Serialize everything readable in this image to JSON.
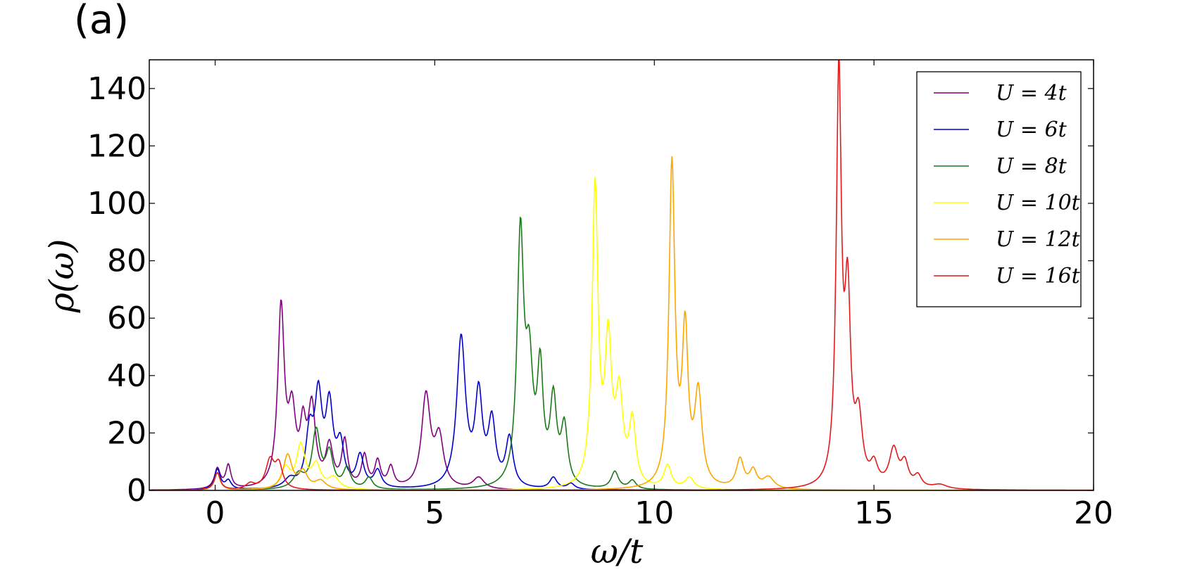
{
  "panel_label": "(a)",
  "chart_data": {
    "type": "line",
    "title": "",
    "xlabel": "ω/t",
    "ylabel": "ρ(ω)",
    "xlim": [
      -1.5,
      20
    ],
    "ylim": [
      0,
      150
    ],
    "xticks": [
      0,
      5,
      10,
      15,
      20
    ],
    "yticks": [
      0,
      20,
      40,
      60,
      80,
      100,
      120,
      140
    ],
    "legend_position": "top-right",
    "grid": false,
    "series": [
      {
        "name": "U = 4t",
        "color": "#800080",
        "peaks": [
          [
            0.05,
            7,
            0.08
          ],
          [
            0.3,
            8,
            0.07
          ],
          [
            1.5,
            62,
            0.09
          ],
          [
            1.75,
            24,
            0.1
          ],
          [
            2.0,
            18,
            0.08
          ],
          [
            2.2,
            27,
            0.1
          ],
          [
            2.6,
            14,
            0.1
          ],
          [
            2.95,
            16,
            0.08
          ],
          [
            3.4,
            11,
            0.08
          ],
          [
            3.7,
            9,
            0.08
          ],
          [
            4.0,
            7,
            0.08
          ],
          [
            4.8,
            32,
            0.12
          ],
          [
            5.1,
            17,
            0.12
          ],
          [
            6.0,
            4,
            0.15
          ]
        ]
      },
      {
        "name": "U = 6t",
        "color": "#0000cd",
        "peaks": [
          [
            0.05,
            7,
            0.08
          ],
          [
            0.3,
            3,
            0.08
          ],
          [
            1.7,
            3,
            0.15
          ],
          [
            2.15,
            18,
            0.1
          ],
          [
            2.35,
            30,
            0.1
          ],
          [
            2.6,
            27,
            0.1
          ],
          [
            2.85,
            14,
            0.1
          ],
          [
            3.3,
            11,
            0.1
          ],
          [
            3.7,
            6,
            0.1
          ],
          [
            5.6,
            52,
            0.12
          ],
          [
            6.0,
            31,
            0.1
          ],
          [
            6.3,
            22,
            0.1
          ],
          [
            6.7,
            17,
            0.1
          ],
          [
            7.7,
            4,
            0.1
          ],
          [
            8.1,
            2,
            0.1
          ]
        ]
      },
      {
        "name": "U = 8t",
        "color": "#1a7a1a",
        "peaks": [
          [
            0.05,
            6,
            0.08
          ],
          [
            1.9,
            5,
            0.15
          ],
          [
            2.3,
            20,
            0.11
          ],
          [
            2.6,
            12,
            0.1
          ],
          [
            3.0,
            7,
            0.1
          ],
          [
            3.5,
            4,
            0.1
          ],
          [
            6.95,
            86,
            0.09
          ],
          [
            7.15,
            38,
            0.1
          ],
          [
            7.4,
            38,
            0.08
          ],
          [
            7.7,
            29,
            0.09
          ],
          [
            7.95,
            20,
            0.09
          ],
          [
            9.1,
            6,
            0.1
          ],
          [
            9.5,
            3,
            0.1
          ]
        ]
      },
      {
        "name": "U = 10t",
        "color": "#ffff00",
        "peaks": [
          [
            0.05,
            6,
            0.08
          ],
          [
            1.6,
            7,
            0.12
          ],
          [
            1.95,
            15,
            0.12
          ],
          [
            2.3,
            8,
            0.12
          ],
          [
            2.7,
            4,
            0.15
          ],
          [
            8.65,
            104,
            0.08
          ],
          [
            8.95,
            48,
            0.09
          ],
          [
            9.2,
            30,
            0.1
          ],
          [
            9.5,
            22,
            0.09
          ],
          [
            10.3,
            8,
            0.1
          ],
          [
            10.8,
            4,
            0.12
          ]
        ]
      },
      {
        "name": "U = 12t",
        "color": "#ffa500",
        "peaks": [
          [
            0.05,
            6,
            0.08
          ],
          [
            1.65,
            12,
            0.12
          ],
          [
            2.0,
            6,
            0.12
          ],
          [
            2.4,
            3,
            0.15
          ],
          [
            10.4,
            112,
            0.08
          ],
          [
            10.7,
            52,
            0.08
          ],
          [
            11.0,
            32,
            0.1
          ],
          [
            11.95,
            10,
            0.1
          ],
          [
            12.25,
            6,
            0.1
          ],
          [
            12.6,
            4,
            0.15
          ]
        ]
      },
      {
        "name": "U = 16t",
        "color": "#e31a1c",
        "peaks": [
          [
            0.05,
            6,
            0.08
          ],
          [
            0.8,
            2,
            0.12
          ],
          [
            1.25,
            10,
            0.12
          ],
          [
            1.45,
            8,
            0.1
          ],
          [
            14.2,
            142,
            0.07
          ],
          [
            14.4,
            62,
            0.08
          ],
          [
            14.65,
            22,
            0.1
          ],
          [
            15.0,
            7,
            0.1
          ],
          [
            15.45,
            13,
            0.12
          ],
          [
            15.7,
            8,
            0.1
          ],
          [
            16.0,
            4,
            0.1
          ],
          [
            16.5,
            1.5,
            0.2
          ]
        ]
      }
    ]
  }
}
